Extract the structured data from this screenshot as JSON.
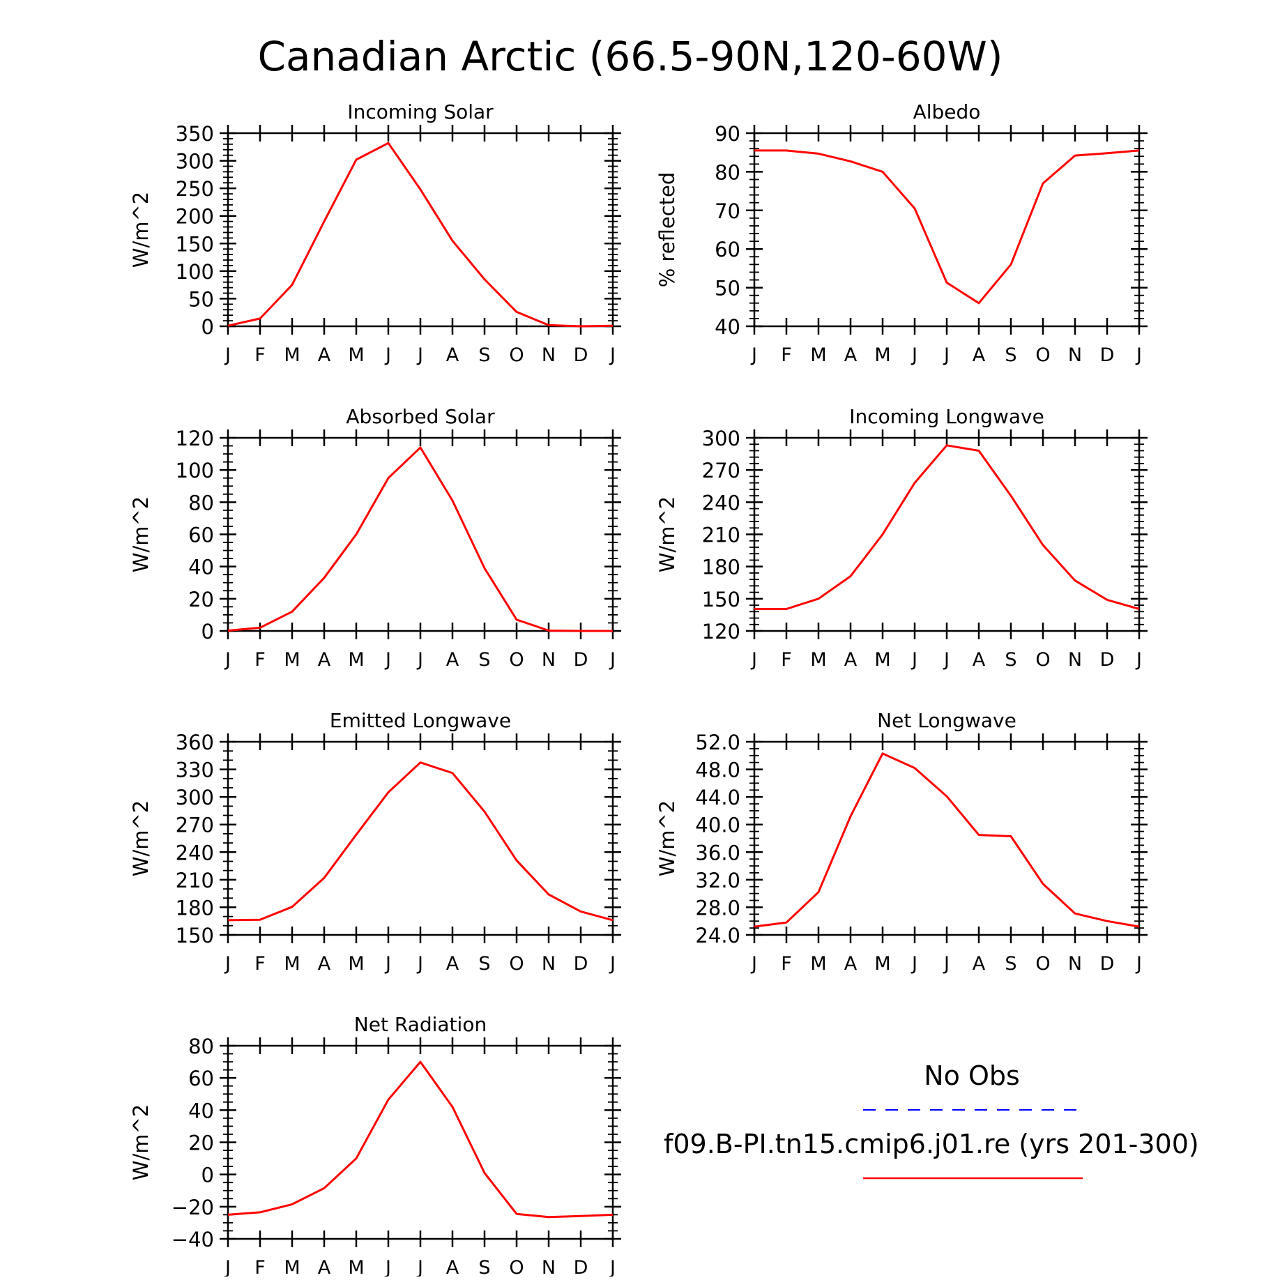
{
  "figure_title": "Canadian Arctic (66.5-90N,120-60W)",
  "months": [
    "J",
    "F",
    "M",
    "A",
    "M",
    "J",
    "J",
    "A",
    "S",
    "O",
    "N",
    "D",
    "J"
  ],
  "legend": {
    "obs_label": "No Obs",
    "obs_color": "#0000ff",
    "model_label": "f09.B-PI.tn15.cmip6.j01.re (yrs 201-300)",
    "model_color": "#ff0000"
  },
  "chart_data": [
    {
      "type": "line",
      "title": "Incoming Solar",
      "ylabel": "W/m^2",
      "ylim": [
        0,
        350
      ],
      "yticks": [
        "0",
        "50",
        "100",
        "150",
        "200",
        "250",
        "300",
        "350"
      ],
      "x": [
        "J",
        "F",
        "M",
        "A",
        "M",
        "J",
        "J",
        "A",
        "S",
        "O",
        "N",
        "D",
        "J"
      ],
      "series": [
        {
          "values": [
            1,
            14,
            75,
            190,
            302,
            332,
            248,
            155,
            85,
            26,
            2,
            0,
            1
          ]
        }
      ]
    },
    {
      "type": "line",
      "title": "Albedo",
      "ylabel": "% reflected",
      "ylim": [
        40,
        90
      ],
      "yticks": [
        "40",
        "50",
        "60",
        "70",
        "80",
        "90"
      ],
      "x": [
        "J",
        "F",
        "M",
        "A",
        "M",
        "J",
        "J",
        "A",
        "S",
        "O",
        "N",
        "D",
        "J"
      ],
      "series": [
        {
          "values": [
            85.5,
            85.5,
            84.7,
            82.7,
            80.0,
            70.5,
            51.3,
            46.0,
            56.0,
            77.0,
            84.2,
            84.8,
            85.5
          ]
        }
      ]
    },
    {
      "type": "line",
      "title": "Absorbed Solar",
      "ylabel": "W/m^2",
      "ylim": [
        0,
        120
      ],
      "yticks": [
        "0",
        "20",
        "40",
        "60",
        "80",
        "100",
        "120"
      ],
      "x": [
        "J",
        "F",
        "M",
        "A",
        "M",
        "J",
        "J",
        "A",
        "S",
        "O",
        "N",
        "D",
        "J"
      ],
      "series": [
        {
          "values": [
            0.2,
            2,
            12,
            33,
            60,
            95,
            114,
            81,
            39,
            7,
            0.2,
            0,
            0
          ]
        }
      ]
    },
    {
      "type": "line",
      "title": "Incoming Longwave",
      "ylabel": "W/m^2",
      "ylim": [
        120,
        300
      ],
      "yticks": [
        "120",
        "150",
        "180",
        "210",
        "240",
        "270",
        "300"
      ],
      "x": [
        "J",
        "F",
        "M",
        "A",
        "M",
        "J",
        "J",
        "A",
        "S",
        "O",
        "N",
        "D",
        "J"
      ],
      "series": [
        {
          "values": [
            140.5,
            140.5,
            150,
            171,
            210,
            258,
            293,
            288,
            246,
            200,
            167,
            149,
            140.5
          ]
        }
      ]
    },
    {
      "type": "line",
      "title": "Emitted Longwave",
      "ylabel": "W/m^2",
      "ylim": [
        150,
        360
      ],
      "yticks": [
        "150",
        "180",
        "210",
        "240",
        "270",
        "300",
        "330",
        "360"
      ],
      "x": [
        "J",
        "F",
        "M",
        "A",
        "M",
        "J",
        "J",
        "A",
        "S",
        "O",
        "N",
        "D",
        "J"
      ],
      "series": [
        {
          "values": [
            166,
            166.5,
            180.5,
            212,
            259,
            305,
            337.5,
            326,
            284,
            231,
            194,
            175.5,
            166
          ]
        }
      ]
    },
    {
      "type": "line",
      "title": "Net Longwave",
      "ylabel": "W/m^2",
      "ylim": [
        24.0,
        52.0
      ],
      "yticks": [
        "24.0",
        "28.0",
        "32.0",
        "36.0",
        "40.0",
        "44.0",
        "48.0",
        "52.0"
      ],
      "x": [
        "J",
        "F",
        "M",
        "A",
        "M",
        "J",
        "J",
        "A",
        "S",
        "O",
        "N",
        "D",
        "J"
      ],
      "series": [
        {
          "values": [
            25.2,
            25.8,
            30.2,
            41.2,
            50.3,
            48.2,
            44.1,
            38.5,
            38.3,
            31.4,
            27.1,
            26.0,
            25.2
          ]
        }
      ]
    },
    {
      "type": "line",
      "title": "Net Radiation",
      "ylabel": "W/m^2",
      "ylim": [
        -40,
        80
      ],
      "yticks": [
        "-40",
        "-20",
        "0",
        "20",
        "40",
        "60",
        "80"
      ],
      "x": [
        "J",
        "F",
        "M",
        "A",
        "M",
        "J",
        "J",
        "A",
        "S",
        "O",
        "N",
        "D",
        "J"
      ],
      "series": [
        {
          "values": [
            -25,
            -23.5,
            -18.5,
            -8.5,
            10,
            46.5,
            70,
            42,
            1,
            -24.5,
            -26.5,
            -25.8,
            -25
          ]
        }
      ]
    }
  ]
}
